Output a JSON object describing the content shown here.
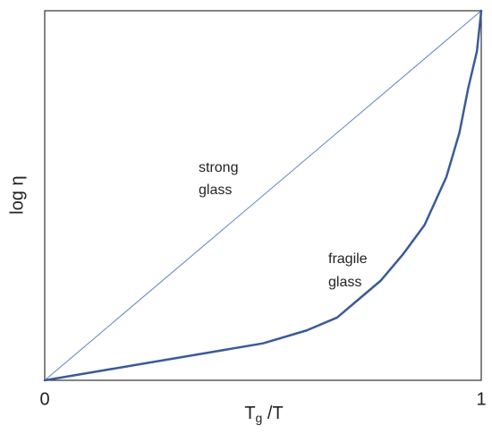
{
  "chart_data": {
    "type": "line",
    "x_label": [
      "T",
      "g",
      " /T"
    ],
    "y_label": "log η",
    "annotations": [
      [
        "strong",
        "glass"
      ],
      [
        "fragile",
        "glass"
      ]
    ],
    "series": [
      {
        "name": "strong glass",
        "color": "#5b84c8",
        "width": 1,
        "x": [
          0,
          1
        ],
        "values": [
          0,
          1
        ]
      },
      {
        "name": "fragile glass",
        "color": "#3a5b98",
        "width": 2.5,
        "x": [
          0,
          0.1,
          0.2,
          0.3,
          0.4,
          0.5,
          0.6,
          0.67,
          0.72,
          0.77,
          0.82,
          0.87,
          0.92,
          0.95,
          0.97,
          0.99,
          1
        ],
        "values": [
          0,
          0.02,
          0.04,
          0.06,
          0.08,
          0.1,
          0.135,
          0.17,
          0.22,
          0.27,
          0.34,
          0.42,
          0.55,
          0.67,
          0.79,
          0.89,
          1
        ]
      }
    ],
    "xlim": [
      0,
      1
    ],
    "xticks": [
      0,
      1
    ],
    "ylim": [
      0,
      1
    ]
  }
}
